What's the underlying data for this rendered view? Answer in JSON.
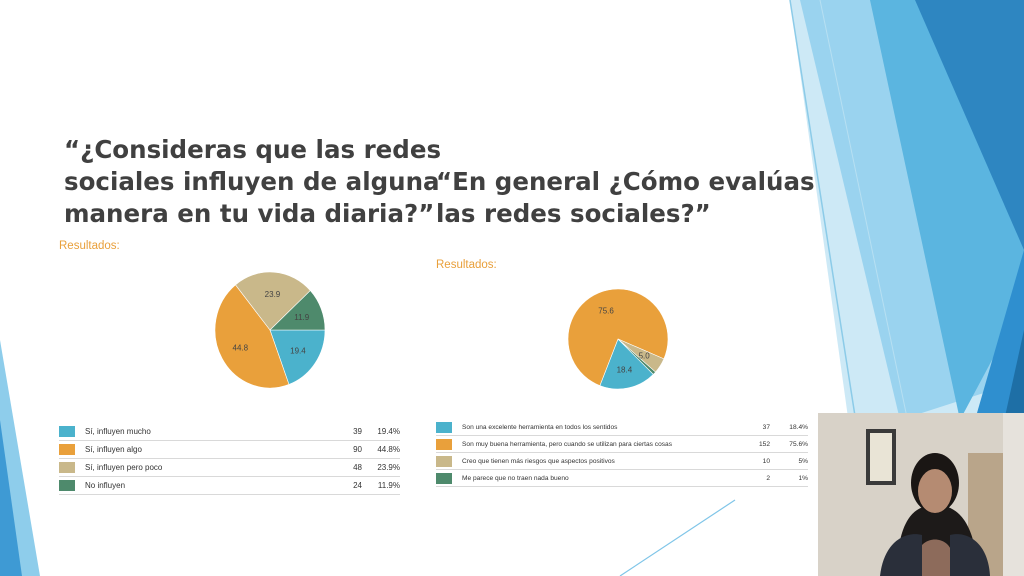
{
  "slide": {
    "question1": [
      "“¿Consideras que las redes",
      "sociales influyen de alguna",
      "manera en tu vida diaria?”"
    ],
    "question2": [
      "“En general ¿Cómo evalúas",
      "las redes sociales?”"
    ],
    "results_label_1": "Resultados:",
    "results_label_2": "Resultados:"
  },
  "chart_data": [
    {
      "type": "pie",
      "values": [
        19.4,
        44.8,
        23.9,
        11.9
      ],
      "slice_labels": [
        "19.4",
        "44.8",
        "23.9",
        "11.9"
      ],
      "colors": [
        "#4BB2CC",
        "#E9A03B",
        "#C9B88A",
        "#4E8A6C"
      ],
      "legend": [
        {
          "label": "Sí, influyen mucho",
          "count": "39",
          "percent": "19.4%"
        },
        {
          "label": "Sí, influyen algo",
          "count": "90",
          "percent": "44.8%"
        },
        {
          "label": "Sí, influyen pero poco",
          "count": "48",
          "percent": "23.9%"
        },
        {
          "label": "No influyen",
          "count": "24",
          "percent": "11.9%"
        }
      ]
    },
    {
      "type": "pie",
      "values": [
        18.4,
        75.6,
        5.0,
        1.0
      ],
      "slice_labels": [
        "18.4",
        "75.6",
        "5.0",
        ""
      ],
      "colors": [
        "#4BB2CC",
        "#E9A03B",
        "#C9B88A",
        "#4E8A6C"
      ],
      "legend": [
        {
          "label": "Son una excelente herramienta en todos los sentidos",
          "count": "37",
          "percent": "18.4%"
        },
        {
          "label": "Son muy buena herramienta, pero cuando se utilizan para ciertas cosas",
          "count": "152",
          "percent": "75.6%"
        },
        {
          "label": "Creo que tienen más riesgos que aspectos positivos",
          "count": "10",
          "percent": "5%"
        },
        {
          "label": "Me parece que no traen nada bueno",
          "count": "2",
          "percent": "1%"
        }
      ]
    }
  ]
}
